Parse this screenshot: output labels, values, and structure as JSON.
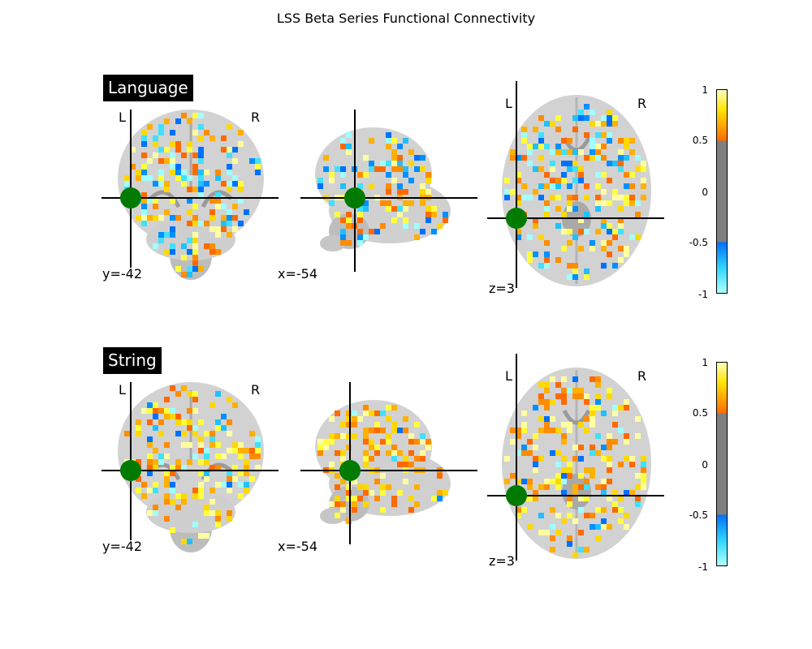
{
  "figure": {
    "title": "LSS Beta Series Functional Connectivity"
  },
  "panels": [
    {
      "label": "Language",
      "coords": {
        "coronal": "y=-42",
        "sagittal": "x=-54",
        "axial": "z=3"
      },
      "orientation": {
        "left": "L",
        "right": "R"
      },
      "colorbar": {
        "ticks": [
          "1",
          "0.5",
          "0",
          "-0.5",
          "-1"
        ]
      }
    },
    {
      "label": "String",
      "coords": {
        "coronal": "y=-42",
        "sagittal": "x=-54",
        "axial": "z=3"
      },
      "orientation": {
        "left": "L",
        "right": "R"
      },
      "colorbar": {
        "ticks": [
          "1",
          "0.5",
          "0",
          "-0.5",
          "-1"
        ]
      }
    }
  ],
  "colors": {
    "marker": "#007a00",
    "crosshair": "#000000",
    "positive_low": "#ff6a00",
    "positive_high": "#ffffa0",
    "negative_low": "#0080ff",
    "negative_high": "#a0ffff",
    "threshold_gray": "#808080"
  },
  "icons": {
    "seed_marker": "seed-point-marker"
  }
}
